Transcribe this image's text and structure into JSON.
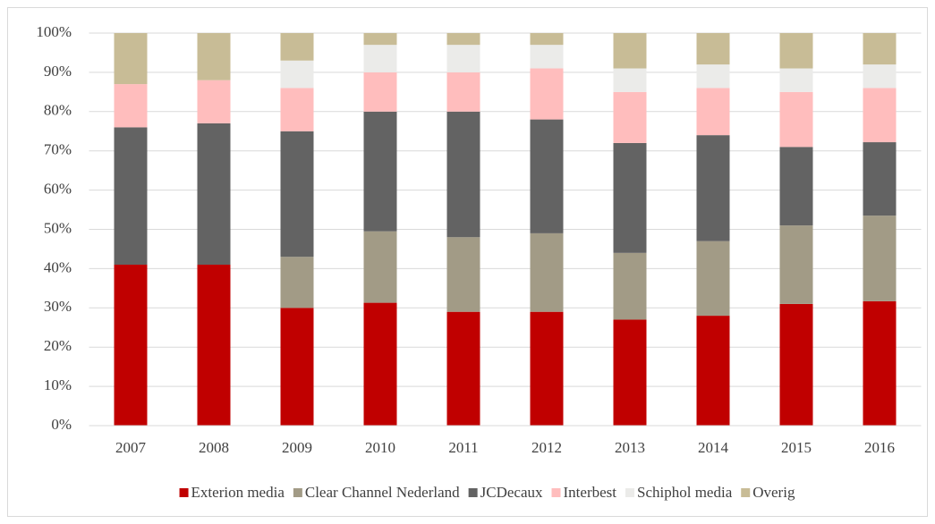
{
  "chart_data": {
    "type": "stacked_bar",
    "categories": [
      "2007",
      "2008",
      "2009",
      "2010",
      "2011",
      "2012",
      "2013",
      "2014",
      "2015",
      "2016"
    ],
    "series": [
      {
        "name": "Exterion media",
        "color": "#c00000",
        "values": [
          41,
          41,
          30,
          31.3,
          29,
          29,
          27,
          28,
          31,
          31.7
        ]
      },
      {
        "name": "Clear Channel Nederland",
        "color": "#a29b86",
        "values": [
          0,
          0,
          13,
          18.2,
          19,
          20,
          17,
          19,
          20,
          21.8
        ]
      },
      {
        "name": "JCDecaux",
        "color": "#636363",
        "values": [
          35,
          36,
          32,
          30.5,
          32,
          29,
          28,
          27,
          20,
          18.7
        ]
      },
      {
        "name": "Interbest",
        "color": "#ffbdbd",
        "values": [
          11,
          11,
          11,
          10,
          10,
          13,
          13,
          12,
          14,
          13.8
        ]
      },
      {
        "name": "Schiphol media",
        "color": "#ebebe9",
        "values": [
          0,
          0,
          7,
          7,
          7,
          6,
          6,
          6,
          6,
          6
        ]
      },
      {
        "name": "Overig",
        "color": "#c8bc96",
        "values": [
          13,
          12,
          7,
          3,
          3,
          3,
          9,
          8,
          9,
          8
        ]
      }
    ],
    "ylim": [
      0,
      100
    ],
    "yticks": [
      {
        "value": 0,
        "label": "0%"
      },
      {
        "value": 10,
        "label": "10%"
      },
      {
        "value": 20,
        "label": "20%"
      },
      {
        "value": 30,
        "label": "30%"
      },
      {
        "value": 40,
        "label": "40%"
      },
      {
        "value": 50,
        "label": "50%"
      },
      {
        "value": 60,
        "label": "60%"
      },
      {
        "value": 70,
        "label": "70%"
      },
      {
        "value": 80,
        "label": "80%"
      },
      {
        "value": 90,
        "label": "90%"
      },
      {
        "value": 100,
        "label": "100%"
      }
    ],
    "grid": true,
    "legend": "bottom"
  }
}
